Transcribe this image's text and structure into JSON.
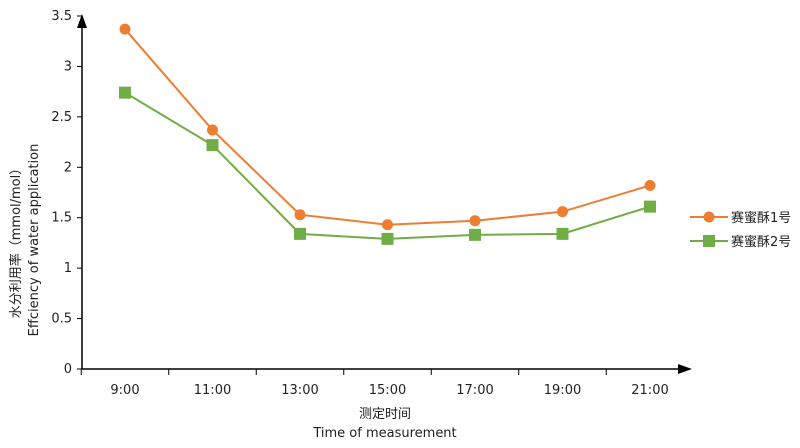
{
  "chart_data": {
    "type": "line",
    "categories": [
      "9:00",
      "11:00",
      "13:00",
      "15:00",
      "17:00",
      "19:00",
      "21:00"
    ],
    "series": [
      {
        "name": "赛蜜酥1号",
        "color": "#ED7D31",
        "marker": "circle",
        "values": [
          3.37,
          2.37,
          1.53,
          1.43,
          1.47,
          1.56,
          1.82
        ]
      },
      {
        "name": "赛蜜酥2号",
        "color": "#70AD47",
        "marker": "square",
        "values": [
          2.74,
          2.22,
          1.34,
          1.29,
          1.33,
          1.34,
          1.61
        ]
      }
    ],
    "y_ticks": [
      "0",
      "0.5",
      "1",
      "1.5",
      "2",
      "2.5",
      "3",
      "3.5"
    ],
    "ylim": [
      0,
      3.5
    ],
    "xlabel_cn": "测定时间",
    "xlabel_en": "Time of measurement",
    "ylabel_cn": "水分利用率（mmol/mol）",
    "ylabel_en": "Effciency of water application",
    "grid": false,
    "legend_position": "right"
  }
}
